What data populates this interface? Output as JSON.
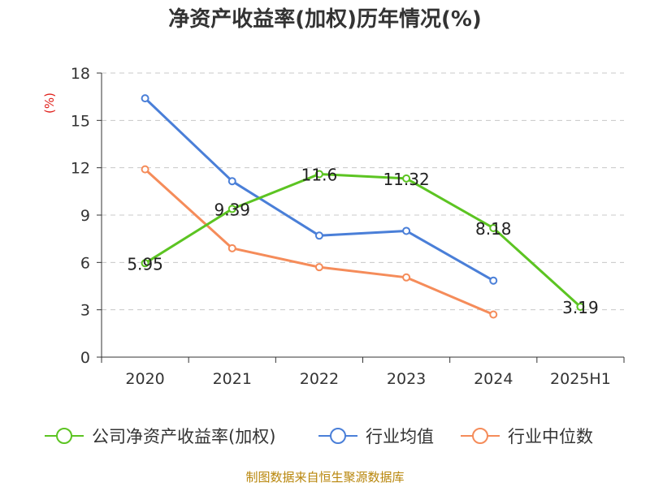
{
  "chart_data": {
    "type": "line",
    "title": "净资产收益率(加权)历年情况(%)",
    "ylabel": "(%)",
    "categories": [
      "2020",
      "2021",
      "2022",
      "2023",
      "2024",
      "2025H1"
    ],
    "ylim": [
      0,
      18
    ],
    "yticks": [
      0,
      3,
      6,
      9,
      12,
      15,
      18
    ],
    "grid": true,
    "legend_position": "bottom",
    "series": [
      {
        "name": "公司净资产收益率(加权)",
        "color": "#5cc422",
        "values": [
          5.95,
          9.39,
          11.6,
          11.32,
          8.18,
          3.19
        ],
        "show_labels": true
      },
      {
        "name": "行业均值",
        "color": "#4a7fd8",
        "values": [
          16.4,
          11.15,
          7.7,
          8.0,
          4.85,
          null
        ],
        "show_labels": false
      },
      {
        "name": "行业中位数",
        "color": "#f58c5a",
        "values": [
          11.9,
          6.9,
          5.7,
          5.05,
          2.7,
          null
        ],
        "show_labels": false
      }
    ]
  },
  "source_text": "制图数据来自恒生聚源数据库"
}
